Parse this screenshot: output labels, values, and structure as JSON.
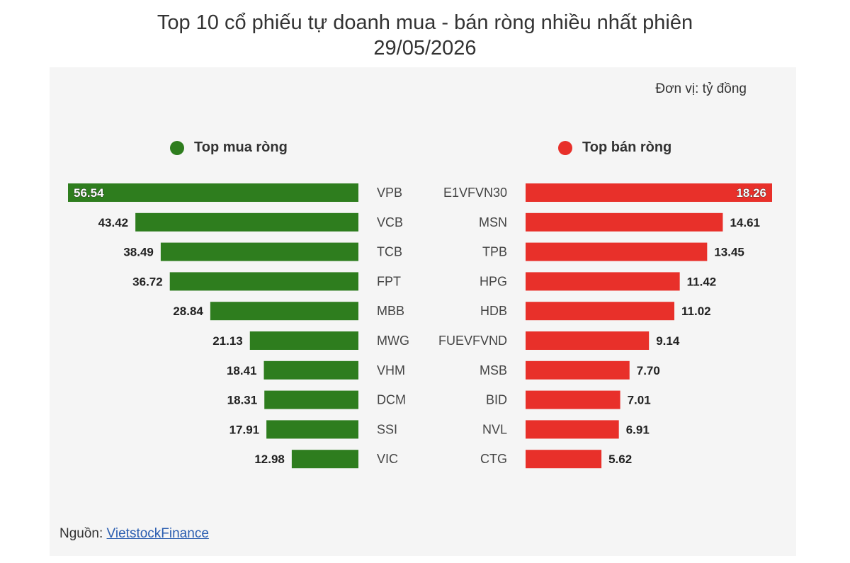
{
  "title_line1": "Top 10 cổ phiếu tự doanh mua - bán ròng nhiều nhất phiên",
  "title_line2": "29/05/2026",
  "unit_label": "Đơn vị: tỷ đồng",
  "source_label": "Nguồn: ",
  "source_link": "VietstockFinance",
  "colors": {
    "buy": "#2e7d1e",
    "sell": "#e8302a",
    "panel": "#f5f5f5"
  },
  "chart_data": [
    {
      "type": "bar",
      "title": "Top mua ròng",
      "orientation": "horizontal-reversed",
      "categories": [
        "VPB",
        "VCB",
        "TCB",
        "FPT",
        "MBB",
        "MWG",
        "VHM",
        "DCM",
        "SSI",
        "VIC"
      ],
      "values": [
        56.54,
        43.42,
        38.49,
        36.72,
        28.84,
        21.13,
        18.41,
        18.31,
        17.91,
        12.98
      ],
      "value_labels": [
        "56.54",
        "43.42",
        "38.49",
        "36.72",
        "28.84",
        "21.13",
        "18.41",
        "18.31",
        "17.91",
        "12.98"
      ],
      "legend": "Top mua ròng"
    },
    {
      "type": "bar",
      "title": "Top bán ròng",
      "orientation": "horizontal",
      "categories": [
        "E1VFVN30",
        "MSN",
        "TPB",
        "HPG",
        "HDB",
        "FUEVFVND",
        "MSB",
        "BID",
        "NVL",
        "CTG"
      ],
      "values": [
        18.26,
        14.61,
        13.45,
        11.42,
        11.02,
        9.14,
        7.7,
        7.01,
        6.91,
        5.62
      ],
      "value_labels": [
        "18.26",
        "14.61",
        "13.45",
        "11.42",
        "11.02",
        "9.14",
        "7.70",
        "7.01",
        "6.91",
        "5.62"
      ],
      "legend": "Top bán ròng"
    }
  ]
}
